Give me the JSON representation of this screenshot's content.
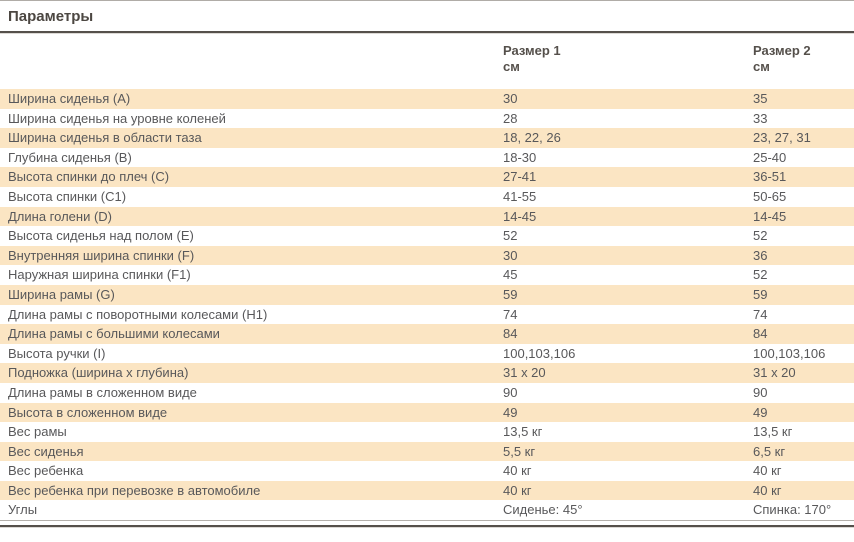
{
  "section": {
    "title": "Параметры"
  },
  "colors": {
    "stripe": "#FBE5C3",
    "text": "#58585A",
    "heading_text": "#4C4742",
    "header_text": "#55504B",
    "rule_dark": "#55504B",
    "rule_light": "#B0ACA7"
  },
  "table": {
    "columns": [
      {
        "title": "Размер 1",
        "unit": "см"
      },
      {
        "title": "Размер 2",
        "unit": "см"
      }
    ],
    "rows": [
      {
        "label": "Ширина сиденья (А)",
        "size1": "30",
        "size2": "35"
      },
      {
        "label": "Ширина сиденья на уровне коленей",
        "size1": "28",
        "size2": "33"
      },
      {
        "label": "Ширина сиденья в области таза",
        "size1": "18, 22, 26",
        "size2": "23, 27, 31"
      },
      {
        "label": "Глубина сиденья (В)",
        "size1": "18-30",
        "size2": "25-40"
      },
      {
        "label": "Высота спинки до плеч (С)",
        "size1": "27-41",
        "size2": "36-51"
      },
      {
        "label": "Высота спинки (С1)",
        "size1": "41-55",
        "size2": "50-65"
      },
      {
        "label": "Длина голени (D)",
        "size1": "14-45",
        "size2": "14-45"
      },
      {
        "label": "Высота сиденья над полом (Е)",
        "size1": "52",
        "size2": "52"
      },
      {
        "label": "Внутренняя ширина спинки (F)",
        "size1": "30",
        "size2": "36"
      },
      {
        "label": "Наружная ширина спинки (F1)",
        "size1": "45",
        "size2": "52"
      },
      {
        "label": "Ширина рамы (G)",
        "size1": "59",
        "size2": "59"
      },
      {
        "label": "Длина рамы с поворотными колесами (Н1)",
        "size1": "74",
        "size2": "74"
      },
      {
        "label": "Длина рамы с большими колесами",
        "size1": "84",
        "size2": "84"
      },
      {
        "label": "Высота ручки (I)",
        "size1": "100,103,106",
        "size2": "100,103,106"
      },
      {
        "label": "Подножка (ширина х глубина)",
        "size1": "31 х 20",
        "size2": "31 х 20"
      },
      {
        "label": "Длина рамы в сложенном виде",
        "size1": "90",
        "size2": "90"
      },
      {
        "label": "Высота в сложенном виде",
        "size1": "49",
        "size2": "49"
      },
      {
        "label": "Вес рамы",
        "size1": "13,5 кг",
        "size2": "13,5 кг"
      },
      {
        "label": "Вес сиденья",
        "size1": "5,5 кг",
        "size2": "6,5 кг"
      },
      {
        "label": "Вес ребенка",
        "size1": "40 кг",
        "size2": "40 кг"
      },
      {
        "label": "Вес ребенка при перевозке в автомобиле",
        "size1": "40 кг",
        "size2": "40 кг"
      },
      {
        "label": "Углы",
        "size1": "Сиденье: 45°",
        "size2": "Спинка: 170°"
      }
    ]
  }
}
